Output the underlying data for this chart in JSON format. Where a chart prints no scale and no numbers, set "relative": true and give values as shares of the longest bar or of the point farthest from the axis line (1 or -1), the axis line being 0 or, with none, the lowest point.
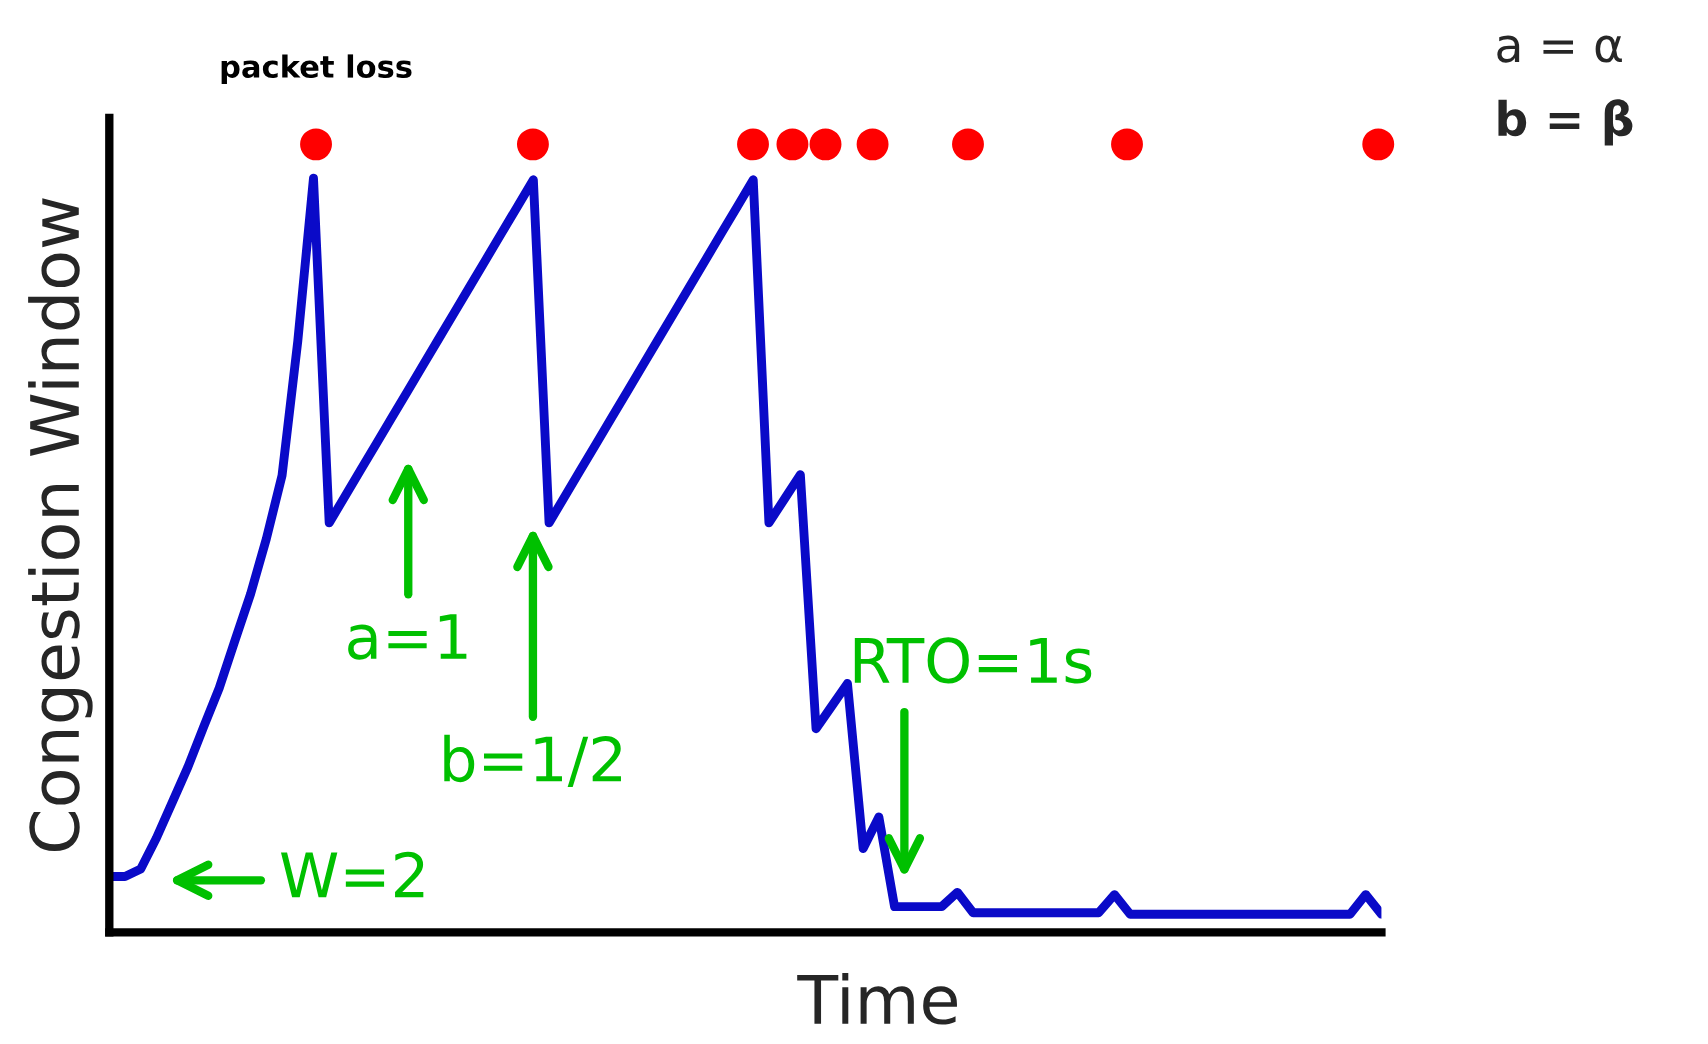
{
  "chart_data": {
    "type": "line",
    "relative": true,
    "xlabel": "Time",
    "ylabel": "Congestion Window",
    "categories": [
      null,
      null,
      null,
      null,
      null,
      null,
      null,
      null,
      null,
      null,
      null,
      null,
      null,
      null,
      null,
      null,
      null,
      null,
      null,
      null,
      null,
      null,
      null,
      null,
      null,
      null,
      null,
      null,
      null,
      null,
      null,
      null,
      null,
      null,
      null,
      null,
      null,
      null,
      null,
      null,
      null,
      null,
      null,
      null,
      null,
      null,
      null,
      null,
      null,
      null,
      null,
      null,
      null,
      null,
      null,
      null,
      null,
      null,
      null,
      null,
      null,
      null,
      null,
      null,
      null,
      null,
      null,
      null,
      null,
      null,
      null,
      null,
      null,
      null,
      null,
      null,
      null,
      null,
      null,
      null,
      null,
      null
    ],
    "series": [
      {
        "color": "#0a0ac8",
        "line_style": "solid",
        "values": [
          0.074,
          0.074,
          0.084,
          0.125,
          0.172,
          0.219,
          0.272,
          0.324,
          0.387,
          0.449,
          0.522,
          0.606,
          0.784,
          1,
          0.543,
          0.578,
          0.613,
          0.648,
          0.683,
          0.718,
          0.753,
          0.788,
          0.823,
          0.858,
          0.893,
          0.928,
          0.963,
          0.998,
          0.543,
          0.578,
          0.613,
          0.648,
          0.683,
          0.718,
          0.753,
          0.788,
          0.823,
          0.858,
          0.893,
          0.928,
          0.963,
          0.998,
          0.543,
          0.575,
          0.607,
          0.27,
          0.3,
          0.33,
          0.111,
          0.153,
          0.034,
          0.034,
          0.034,
          0.034,
          0.053,
          0.026,
          0.026,
          0.026,
          0.026,
          0.026,
          0.026,
          0.026,
          0.026,
          0.026,
          0.05,
          0.024,
          0.024,
          0.024,
          0.024,
          0.024,
          0.024,
          0.024,
          0.024,
          0.024,
          0.024,
          0.024,
          0.024,
          0.024,
          0.024,
          0.024,
          0.05,
          0.024
        ]
      }
    ],
    "annotations": [
      "packet loss",
      "a=1",
      "b=1/2",
      "W=2",
      "RTO=1s",
      "a = α",
      "b = β"
    ]
  }
}
